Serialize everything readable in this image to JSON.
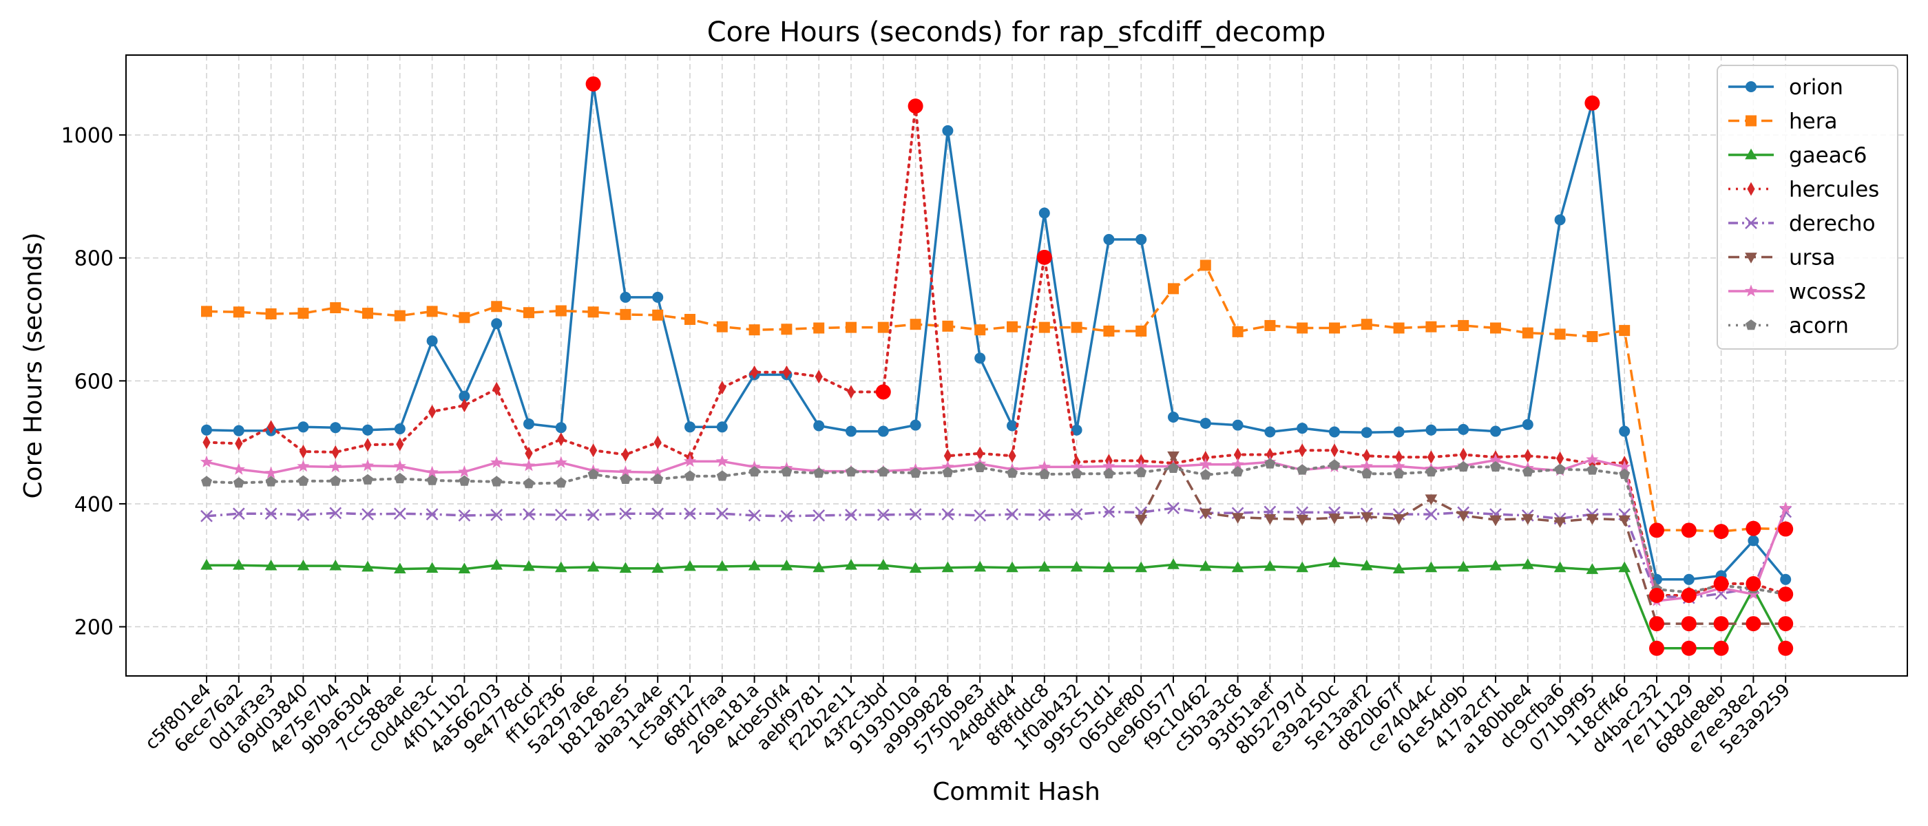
{
  "chart_data": {
    "type": "line",
    "title": "Core Hours (seconds) for rap_sfcdiff_decomp",
    "xlabel": "Commit Hash",
    "ylabel": "Core Hours (seconds)",
    "ylim": [
      120,
      1130
    ],
    "yticks": [
      200,
      400,
      600,
      800,
      1000
    ],
    "grid": true,
    "legend_position": "top-right",
    "categories": [
      "c5f801e4",
      "6ece76a2",
      "0d1af3e3",
      "69d03840",
      "4e75e7b4",
      "9b9a6304",
      "7cc588ae",
      "c0d4de3c",
      "4f0111b2",
      "4a566203",
      "9e4778cd",
      "ff162f36",
      "5a297a6e",
      "b81282e5",
      "aba31a4e",
      "1c5a9f12",
      "68fd7faa",
      "269e181a",
      "4cbe50f4",
      "aebf9781",
      "f22b2e11",
      "43f2c3bd",
      "9193010a",
      "a9999828",
      "5750b9e3",
      "24d8dfd4",
      "8f8fddc8",
      "1f0ab432",
      "995c51d1",
      "065def80",
      "0e960577",
      "f9c10462",
      "c5b3a3c8",
      "93d51aef",
      "8b52797d",
      "e39a250c",
      "5e13aaf2",
      "d820b67f",
      "ce74044c",
      "61e54d9b",
      "417a2cf1",
      "a180bbe4",
      "dc9cfba6",
      "071b9f95",
      "118cff46",
      "d4bac232",
      "7e711129",
      "688de8eb",
      "e7ee38e2",
      "5e3a9259"
    ],
    "series": [
      {
        "name": "orion",
        "color": "#1f77b4",
        "line": "solid",
        "marker": "circle",
        "values": [
          520,
          519,
          519,
          525,
          524,
          520,
          522,
          665,
          575,
          693,
          530,
          524,
          1083,
          736,
          736,
          525,
          525,
          610,
          610,
          527,
          518,
          518,
          528,
          1007,
          637,
          527,
          873,
          520,
          830,
          830,
          541,
          531,
          528,
          517,
          523,
          517,
          516,
          517,
          520,
          521,
          518,
          529,
          862,
          1052,
          518,
          277,
          277,
          283,
          340,
          277
        ],
        "highlight": [
          12,
          43
        ]
      },
      {
        "name": "hera",
        "color": "#ff7f0e",
        "line": "dashed",
        "marker": "square",
        "values": [
          713,
          712,
          709,
          710,
          719,
          710,
          706,
          713,
          703,
          721,
          711,
          714,
          712,
          708,
          707,
          700,
          688,
          683,
          684,
          686,
          687,
          687,
          692,
          689,
          683,
          688,
          687,
          687,
          681,
          681,
          750,
          788,
          680,
          690,
          686,
          686,
          692,
          686,
          688,
          690,
          686,
          678,
          676,
          672,
          682,
          357,
          357,
          355,
          360,
          359
        ],
        "highlight": [
          45,
          46,
          47,
          48,
          49
        ]
      },
      {
        "name": "gaeac6",
        "color": "#2ca02c",
        "line": "solid",
        "marker": "triangle-up",
        "values": [
          300,
          300,
          299,
          299,
          299,
          297,
          294,
          295,
          294,
          300,
          298,
          296,
          297,
          295,
          295,
          298,
          298,
          299,
          299,
          296,
          300,
          300,
          295,
          296,
          297,
          296,
          297,
          297,
          296,
          296,
          301,
          298,
          296,
          298,
          296,
          304,
          299,
          294,
          296,
          297,
          299,
          301,
          296,
          293,
          296,
          165,
          165,
          165,
          262,
          165
        ],
        "highlight": [
          45,
          46,
          47,
          49
        ]
      },
      {
        "name": "hercules",
        "color": "#d62728",
        "line": "dotted",
        "marker": "thin-diamond",
        "values": [
          500,
          498,
          525,
          485,
          484,
          496,
          497,
          550,
          560,
          587,
          482,
          505,
          487,
          480,
          500,
          475,
          589,
          614,
          614,
          607,
          582,
          582,
          1047,
          478,
          482,
          478,
          801,
          468,
          470,
          470,
          466,
          475,
          480,
          480,
          487,
          487,
          478,
          476,
          476,
          480,
          476,
          478,
          474,
          465,
          467,
          251,
          251,
          270,
          270,
          253
        ],
        "highlight": [
          21,
          22,
          26,
          45,
          46,
          47,
          48,
          49
        ]
      },
      {
        "name": "derecho",
        "color": "#9467bd",
        "line": "dashdot",
        "marker": "x",
        "values": [
          380,
          384,
          384,
          382,
          385,
          383,
          384,
          383,
          381,
          382,
          383,
          382,
          382,
          384,
          384,
          384,
          384,
          381,
          380,
          381,
          382,
          382,
          383,
          383,
          381,
          383,
          382,
          383,
          387,
          386,
          393,
          385,
          385,
          387,
          386,
          386,
          384,
          383,
          383,
          386,
          383,
          381,
          376,
          383,
          383,
          250,
          247,
          254,
          263,
          387
        ],
        "highlight": []
      },
      {
        "name": "ursa",
        "color": "#8c564b",
        "line": "dashed",
        "marker": "triangle-down",
        "values": [
          null,
          null,
          null,
          null,
          null,
          null,
          null,
          null,
          null,
          null,
          null,
          null,
          null,
          null,
          null,
          null,
          null,
          null,
          null,
          null,
          null,
          null,
          null,
          null,
          null,
          null,
          null,
          null,
          null,
          375,
          478,
          385,
          378,
          376,
          375,
          377,
          379,
          376,
          408,
          381,
          374,
          376,
          371,
          376,
          374,
          205,
          205,
          205,
          205,
          205
        ],
        "highlight": [
          45,
          46,
          47,
          48,
          49
        ]
      },
      {
        "name": "wcoss2",
        "color": "#e377c2",
        "line": "solid",
        "marker": "star",
        "values": [
          468,
          456,
          450,
          461,
          460,
          462,
          461,
          451,
          452,
          467,
          462,
          467,
          454,
          452,
          451,
          469,
          469,
          460,
          458,
          453,
          453,
          453,
          456,
          460,
          465,
          456,
          460,
          460,
          461,
          461,
          461,
          464,
          464,
          468,
          455,
          460,
          461,
          461,
          457,
          462,
          471,
          458,
          454,
          472,
          460,
          242,
          248,
          263,
          253,
          393
        ],
        "highlight": []
      },
      {
        "name": "acorn",
        "color": "#7f7f7f",
        "line": "dotted",
        "marker": "pentagon",
        "values": [
          436,
          434,
          436,
          437,
          437,
          439,
          441,
          438,
          437,
          436,
          433,
          434,
          448,
          440,
          440,
          445,
          445,
          452,
          452,
          450,
          452,
          452,
          450,
          451,
          459,
          450,
          448,
          449,
          449,
          451,
          458,
          447,
          452,
          465,
          455,
          463,
          449,
          449,
          452,
          460,
          460,
          452,
          456,
          455,
          448,
          261,
          256,
          267,
          262,
          253
        ],
        "highlight": []
      }
    ],
    "highlight_color": "#ff0000"
  }
}
